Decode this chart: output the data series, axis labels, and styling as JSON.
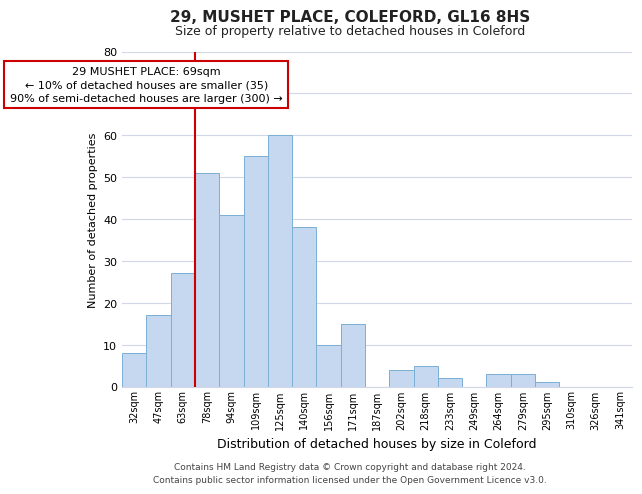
{
  "title": "29, MUSHET PLACE, COLEFORD, GL16 8HS",
  "subtitle": "Size of property relative to detached houses in Coleford",
  "xlabel": "Distribution of detached houses by size in Coleford",
  "ylabel": "Number of detached properties",
  "bin_labels": [
    "32sqm",
    "47sqm",
    "63sqm",
    "78sqm",
    "94sqm",
    "109sqm",
    "125sqm",
    "140sqm",
    "156sqm",
    "171sqm",
    "187sqm",
    "202sqm",
    "218sqm",
    "233sqm",
    "249sqm",
    "264sqm",
    "279sqm",
    "295sqm",
    "310sqm",
    "326sqm",
    "341sqm"
  ],
  "bar_heights": [
    8,
    17,
    27,
    51,
    41,
    55,
    60,
    38,
    10,
    15,
    0,
    4,
    5,
    2,
    0,
    3,
    3,
    1,
    0,
    0,
    0
  ],
  "bar_color": "#c5d8f0",
  "bar_edge_color": "#7bafd4",
  "vline_x_index": 2,
  "vline_color": "#cc0000",
  "ylim": [
    0,
    80
  ],
  "yticks": [
    0,
    10,
    20,
    30,
    40,
    50,
    60,
    70,
    80
  ],
  "annotation_line1": "29 MUSHET PLACE: 69sqm",
  "annotation_line2": "← 10% of detached houses are smaller (35)",
  "annotation_line3": "90% of semi-detached houses are larger (300) →",
  "annotation_box_color": "#ffffff",
  "annotation_box_edge": "#cc0000",
  "footer_line1": "Contains HM Land Registry data © Crown copyright and database right 2024.",
  "footer_line2": "Contains public sector information licensed under the Open Government Licence v3.0.",
  "background_color": "#ffffff",
  "grid_color": "#d0d8e8",
  "title_fontsize": 11,
  "subtitle_fontsize": 9
}
